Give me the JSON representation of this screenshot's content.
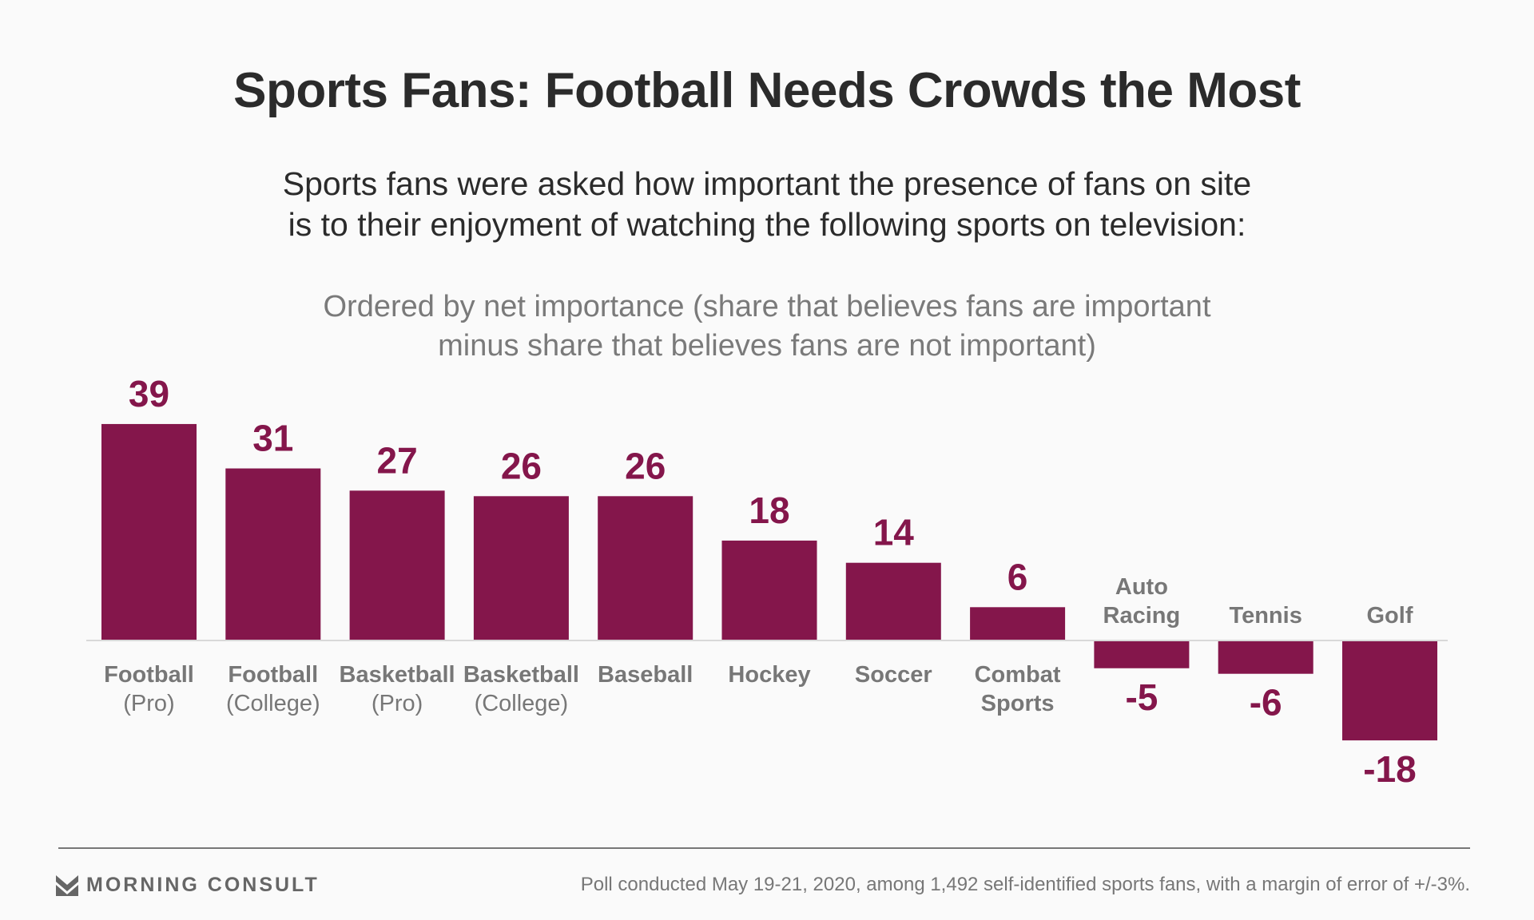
{
  "chart_data": {
    "type": "bar",
    "title": "Sports Fans: Football Needs Crowds the Most",
    "subtitle": [
      "Sports fans were asked how important the presence of fans on site",
      "is to their enjoyment of watching the following sports on television:"
    ],
    "note": [
      "Ordered by net importance (share that believes fans are important",
      "minus share that believes fans are not important)"
    ],
    "categories": [
      [
        "Football",
        "(Pro)"
      ],
      [
        "Football",
        "(College)"
      ],
      [
        "Basketball",
        "(Pro)"
      ],
      [
        "Basketball",
        "(College)"
      ],
      [
        "Baseball"
      ],
      [
        "Hockey"
      ],
      [
        "Soccer"
      ],
      [
        "Combat",
        "Sports"
      ],
      [
        "Auto",
        "Racing"
      ],
      [
        "Tennis"
      ],
      [
        "Golf"
      ]
    ],
    "values": [
      39,
      31,
      27,
      26,
      26,
      18,
      14,
      6,
      -5,
      -6,
      -18
    ],
    "xlabel": "",
    "ylabel": "",
    "ylim": [
      -18,
      39
    ],
    "grid": false,
    "colors": {
      "bar": "#84164b",
      "label": "#777777",
      "value": "#84164b"
    }
  },
  "footer": {
    "brand": "MORNING CONSULT",
    "source": "Poll conducted May 19-21, 2020, among 1,492 self-identified sports fans, with a margin of error of +/-3%."
  }
}
